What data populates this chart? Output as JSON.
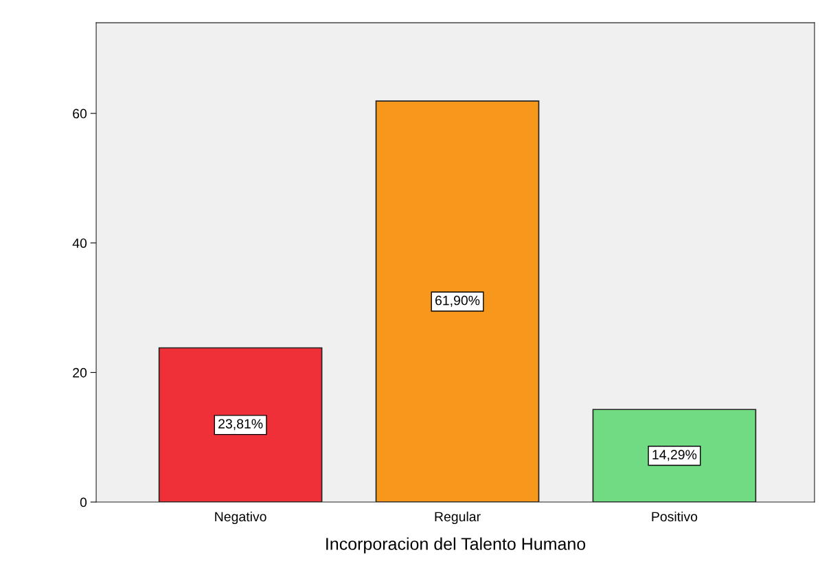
{
  "chart_data": {
    "type": "bar",
    "xlabel": "Incorporacion del Talento Humano",
    "categories": [
      "Negativo",
      "Regular",
      "Positivo"
    ],
    "values": [
      23.81,
      61.9,
      14.29
    ],
    "colors": [
      "#ef3038",
      "#f7981d",
      "#70db82"
    ],
    "value_labels": [
      "23,81%",
      "61,90%",
      "14,29%"
    ],
    "ylim": [
      0,
      74
    ],
    "yticks": [
      0,
      20,
      40,
      60
    ],
    "grid": false
  }
}
